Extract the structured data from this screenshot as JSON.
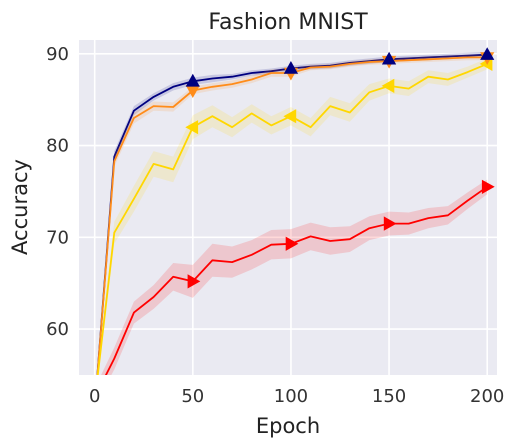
{
  "chart_data": {
    "type": "line",
    "title": "Fashion MNIST",
    "xlabel": "Epoch",
    "ylabel": "Accuracy",
    "xlim": [
      -8,
      205
    ],
    "ylim": [
      55,
      91.5
    ],
    "xticks": [
      0,
      50,
      100,
      150,
      200
    ],
    "yticks": [
      60,
      70,
      80,
      90
    ],
    "grid": true,
    "legend": "none",
    "x": [
      1,
      10,
      20,
      30,
      40,
      50,
      60,
      70,
      80,
      90,
      100,
      110,
      120,
      130,
      140,
      150,
      160,
      170,
      180,
      190,
      200
    ],
    "series": [
      {
        "color": "#000080",
        "marker": "triangle-up",
        "marker_x": [
          50,
          100,
          150,
          200
        ],
        "values": [
          54.0,
          78.8,
          83.8,
          85.3,
          86.4,
          87.0,
          87.3,
          87.5,
          87.9,
          88.1,
          88.4,
          88.6,
          88.7,
          89.0,
          89.2,
          89.4,
          89.5,
          89.6,
          89.7,
          89.8,
          89.9
        ],
        "band": [
          0.5,
          0.6,
          0.5,
          0.4,
          0.4,
          0.4,
          0.4,
          0.3,
          0.3,
          0.3,
          0.3,
          0.3,
          0.3,
          0.3,
          0.3,
          0.3,
          0.3,
          0.3,
          0.3,
          0.3,
          0.3
        ]
      },
      {
        "color": "#ff8c1a",
        "marker": "triangle-down",
        "marker_x": [
          50,
          100,
          150,
          200
        ],
        "values": [
          54.0,
          78.3,
          83.0,
          84.3,
          84.2,
          86.0,
          86.4,
          86.7,
          87.2,
          87.9,
          87.9,
          88.5,
          88.6,
          88.9,
          89.1,
          89.2,
          89.3,
          89.4,
          89.5,
          89.6,
          89.6
        ],
        "band": [
          0.5,
          0.6,
          0.6,
          0.5,
          0.5,
          0.4,
          0.4,
          0.4,
          0.4,
          0.4,
          0.4,
          0.3,
          0.3,
          0.3,
          0.3,
          0.3,
          0.3,
          0.3,
          0.3,
          0.3,
          0.3
        ]
      },
      {
        "color": "#ffd700",
        "marker": "triangle-left",
        "marker_x": [
          50,
          100,
          150,
          200
        ],
        "values": [
          54.0,
          70.5,
          74.2,
          78.0,
          77.4,
          82.0,
          83.2,
          82.0,
          83.5,
          82.2,
          83.2,
          82.0,
          84.3,
          83.6,
          85.8,
          86.5,
          86.2,
          87.5,
          87.2,
          88.0,
          88.9
        ],
        "band": [
          0.8,
          1.2,
          1.4,
          1.4,
          1.4,
          1.3,
          1.2,
          1.1,
          1.0,
          1.0,
          1.0,
          1.0,
          1.0,
          1.0,
          0.9,
          0.8,
          0.8,
          0.7,
          0.7,
          0.6,
          0.6
        ]
      },
      {
        "color": "#ff0000",
        "marker": "triangle-right",
        "marker_x": [
          50,
          100,
          150,
          200
        ],
        "values": [
          53.0,
          56.8,
          61.8,
          63.5,
          65.7,
          65.2,
          67.5,
          67.3,
          68.1,
          69.2,
          69.3,
          70.1,
          69.6,
          69.8,
          71.0,
          71.5,
          71.5,
          72.1,
          72.4,
          74.0,
          75.5
        ],
        "band": [
          1.0,
          1.2,
          1.2,
          1.3,
          1.5,
          1.8,
          1.8,
          1.7,
          1.6,
          1.6,
          1.6,
          1.5,
          1.5,
          1.4,
          1.3,
          1.3,
          1.2,
          1.1,
          1.0,
          0.9,
          0.8
        ]
      }
    ]
  }
}
